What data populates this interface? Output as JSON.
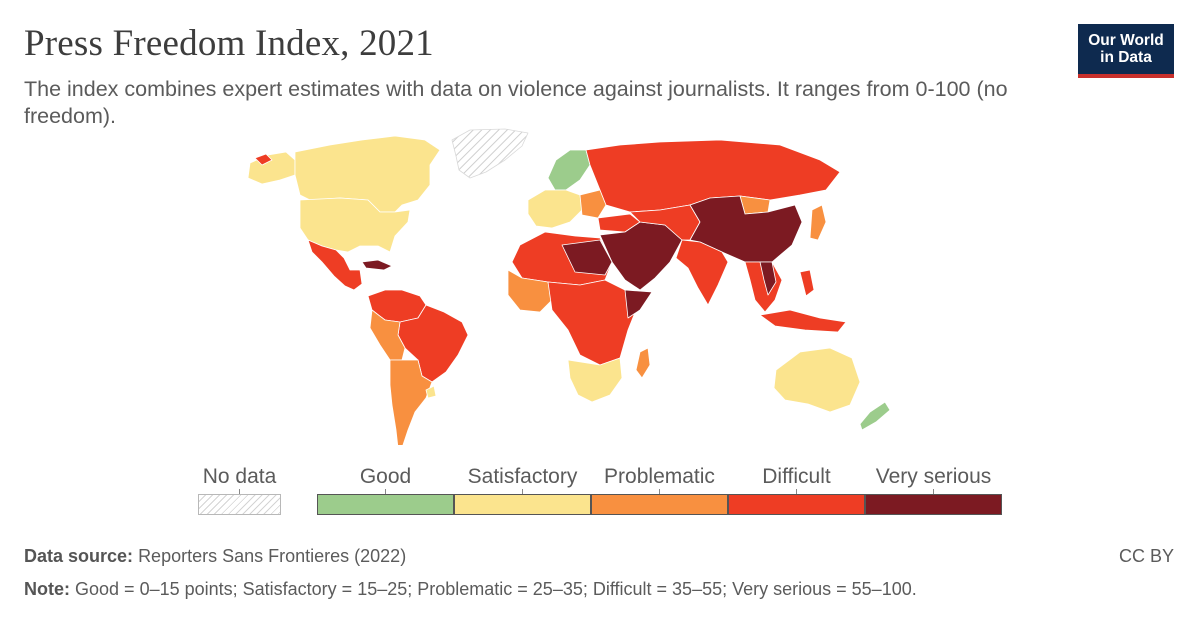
{
  "header": {
    "title": "Press Freedom Index, 2021",
    "subtitle": "The index combines expert estimates with data on violence against journalists. It ranges from 0-100 (no freedom)."
  },
  "logo": {
    "line1": "Our World",
    "line2": "in Data"
  },
  "legend": {
    "no_data_label": "No data",
    "categories": [
      {
        "label": "Good",
        "color": "#9ccc8c",
        "range": "0–15"
      },
      {
        "label": "Satisfactory",
        "color": "#fbe48e",
        "range": "15–25"
      },
      {
        "label": "Problematic",
        "color": "#f89040",
        "range": "25–35"
      },
      {
        "label": "Difficult",
        "color": "#ee3d24",
        "range": "35–55"
      },
      {
        "label": "Very serious",
        "color": "#7c1a22",
        "range": "55–100"
      }
    ]
  },
  "footer": {
    "source_label": "Data source:",
    "source_text": "Reporters Sans Frontieres (2022)",
    "note_label": "Note:",
    "note_text": "Good = 0–15 points; Satisfactory = 15–25; Problematic = 25–35; Difficult = 35–55; Very serious = 55–100.",
    "license": "CC BY"
  },
  "colors": {
    "good": "#9ccc8c",
    "satisfactory": "#fbe48e",
    "problematic": "#f89040",
    "difficult": "#ee3d24",
    "very_serious": "#7c1a22",
    "no_data": "#e8e8e8"
  }
}
